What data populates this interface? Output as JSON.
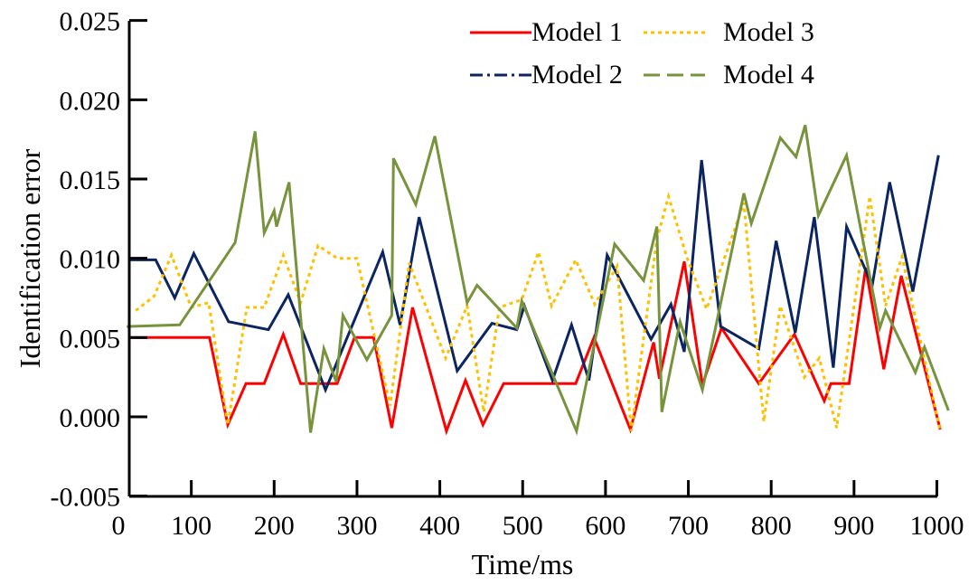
{
  "chart_data": {
    "type": "line",
    "title": "",
    "xlabel": "Time/ms",
    "ylabel": "Identification error",
    "xlim": [
      0,
      1000
    ],
    "ylim": [
      -0.005,
      0.025
    ],
    "x_ticks": [
      "0",
      "100",
      "200",
      "300",
      "400",
      "500",
      "600",
      "700",
      "800",
      "900",
      "1000"
    ],
    "x_tick_values": [
      0,
      100,
      200,
      300,
      400,
      500,
      600,
      700,
      800,
      900,
      1000
    ],
    "y_ticks": [
      "-0.005",
      "0.000",
      "0.005",
      "0.010",
      "0.015",
      "0.020",
      "0.025"
    ],
    "y_tick_values": [
      -0.005,
      0,
      0.005,
      0.01,
      0.015,
      0.02,
      0.025
    ],
    "grid": false,
    "legend_position": "top-right",
    "series": [
      {
        "name": "Model 1",
        "color": "#ff0000",
        "style": "solid",
        "points": [
          [
            27,
            0.005
          ],
          [
            122,
            0.005
          ],
          [
            144,
            -0.0005
          ],
          [
            166,
            0.0021
          ],
          [
            188,
            0.0021
          ],
          [
            211,
            0.0052
          ],
          [
            232,
            0.0021
          ],
          [
            276,
            0.0021
          ],
          [
            297,
            0.005
          ],
          [
            320,
            0.005
          ],
          [
            342,
            -0.0007
          ],
          [
            367,
            0.0069
          ],
          [
            408,
            -0.0009
          ],
          [
            431,
            0.0023
          ],
          [
            452,
            -0.0005
          ],
          [
            477,
            0.0021
          ],
          [
            564,
            0.0021
          ],
          [
            586,
            0.005
          ],
          [
            630,
            -0.0008
          ],
          [
            658,
            0.0047
          ],
          [
            665,
            0.0024
          ],
          [
            695,
            0.0098
          ],
          [
            717,
            0.002
          ],
          [
            740,
            0.0056
          ],
          [
            785,
            0.0021
          ],
          [
            828,
            0.0052
          ],
          [
            864,
            0.001
          ],
          [
            872,
            0.0021
          ],
          [
            894,
            0.0021
          ],
          [
            914,
            0.0094
          ],
          [
            936,
            0.003
          ],
          [
            957,
            0.0089
          ],
          [
            1004,
            -0.0008
          ]
        ]
      },
      {
        "name": "Model 2",
        "color": "#0b2562",
        "style": "dashdot",
        "points": [
          [
            25,
            0.0099
          ],
          [
            57,
            0.0099
          ],
          [
            80,
            0.0075
          ],
          [
            103,
            0.0103
          ],
          [
            145,
            0.006
          ],
          [
            193,
            0.0055
          ],
          [
            217,
            0.0077
          ],
          [
            262,
            0.0017
          ],
          [
            331,
            0.0104
          ],
          [
            352,
            0.0058
          ],
          [
            375,
            0.0126
          ],
          [
            421,
            0.0029
          ],
          [
            463,
            0.0059
          ],
          [
            493,
            0.0055
          ],
          [
            502,
            0.007
          ],
          [
            536,
            0.0023
          ],
          [
            559,
            0.0058
          ],
          [
            580,
            0.0023
          ],
          [
            602,
            0.0102
          ],
          [
            655,
            0.0049
          ],
          [
            679,
            0.0071
          ],
          [
            695,
            0.0041
          ],
          [
            716,
            0.0162
          ],
          [
            739,
            0.0057
          ],
          [
            785,
            0.0043
          ],
          [
            806,
            0.0111
          ],
          [
            829,
            0.0053
          ],
          [
            852,
            0.0126
          ],
          [
            875,
            0.0031
          ],
          [
            891,
            0.012
          ],
          [
            922,
            0.0083
          ],
          [
            943,
            0.0148
          ],
          [
            971,
            0.0079
          ],
          [
            1002,
            0.0165
          ]
        ]
      },
      {
        "name": "Model 3",
        "color": "#ffc000",
        "style": "dotted",
        "points": [
          [
            33,
            0.0067
          ],
          [
            55,
            0.0076
          ],
          [
            76,
            0.0102
          ],
          [
            100,
            0.0069
          ],
          [
            121,
            0.0072
          ],
          [
            144,
            -0.0005
          ],
          [
            167,
            0.0069
          ],
          [
            188,
            0.0069
          ],
          [
            211,
            0.0102
          ],
          [
            232,
            0.0072
          ],
          [
            253,
            0.0108
          ],
          [
            276,
            0.01
          ],
          [
            300,
            0.01
          ],
          [
            340,
            0.0007
          ],
          [
            363,
            0.0097
          ],
          [
            407,
            0.0037
          ],
          [
            433,
            0.007
          ],
          [
            453,
            0.0003
          ],
          [
            472,
            0.0069
          ],
          [
            499,
            0.0074
          ],
          [
            519,
            0.0104
          ],
          [
            535,
            0.007
          ],
          [
            564,
            0.0099
          ],
          [
            587,
            0.0071
          ],
          [
            614,
            0.0095
          ],
          [
            631,
            -0.0009
          ],
          [
            662,
            0.0112
          ],
          [
            676,
            0.0139
          ],
          [
            698,
            0.0101
          ],
          [
            722,
            0.0068
          ],
          [
            767,
            0.0135
          ],
          [
            791,
            -0.0003
          ],
          [
            811,
            0.007
          ],
          [
            840,
            0.0025
          ],
          [
            858,
            0.0037
          ],
          [
            879,
            -0.0007
          ],
          [
            919,
            0.0139
          ],
          [
            938,
            0.007
          ],
          [
            958,
            0.0101
          ],
          [
            1004,
            -0.0009
          ]
        ]
      },
      {
        "name": "Model 4",
        "color": "#77933c",
        "style": "longdash",
        "points": [
          [
            22,
            0.0057
          ],
          [
            86,
            0.0058
          ],
          [
            153,
            0.011
          ],
          [
            177,
            0.018
          ],
          [
            188,
            0.0116
          ],
          [
            200,
            0.013
          ],
          [
            203,
            0.012
          ],
          [
            218,
            0.0148
          ],
          [
            244,
            -0.001
          ],
          [
            260,
            0.0043
          ],
          [
            275,
            0.0022
          ],
          [
            283,
            0.0064
          ],
          [
            312,
            0.0036
          ],
          [
            342,
            0.0064
          ],
          [
            344,
            0.0163
          ],
          [
            371,
            0.0134
          ],
          [
            394,
            0.0177
          ],
          [
            433,
            0.0072
          ],
          [
            445,
            0.0083
          ],
          [
            493,
            0.0056
          ],
          [
            499,
            0.0073
          ],
          [
            565,
            -0.0009
          ],
          [
            611,
            0.0109
          ],
          [
            646,
            0.0086
          ],
          [
            662,
            0.012
          ],
          [
            668,
            0.0003
          ],
          [
            690,
            0.006
          ],
          [
            717,
            0.0017
          ],
          [
            767,
            0.0141
          ],
          [
            776,
            0.0122
          ],
          [
            811,
            0.0176
          ],
          [
            830,
            0.0164
          ],
          [
            841,
            0.0184
          ],
          [
            857,
            0.0127
          ],
          [
            891,
            0.0165
          ],
          [
            931,
            0.0056
          ],
          [
            938,
            0.0067
          ],
          [
            974,
            0.0028
          ],
          [
            985,
            0.0044
          ],
          [
            1014,
            0.0004
          ]
        ]
      }
    ]
  }
}
